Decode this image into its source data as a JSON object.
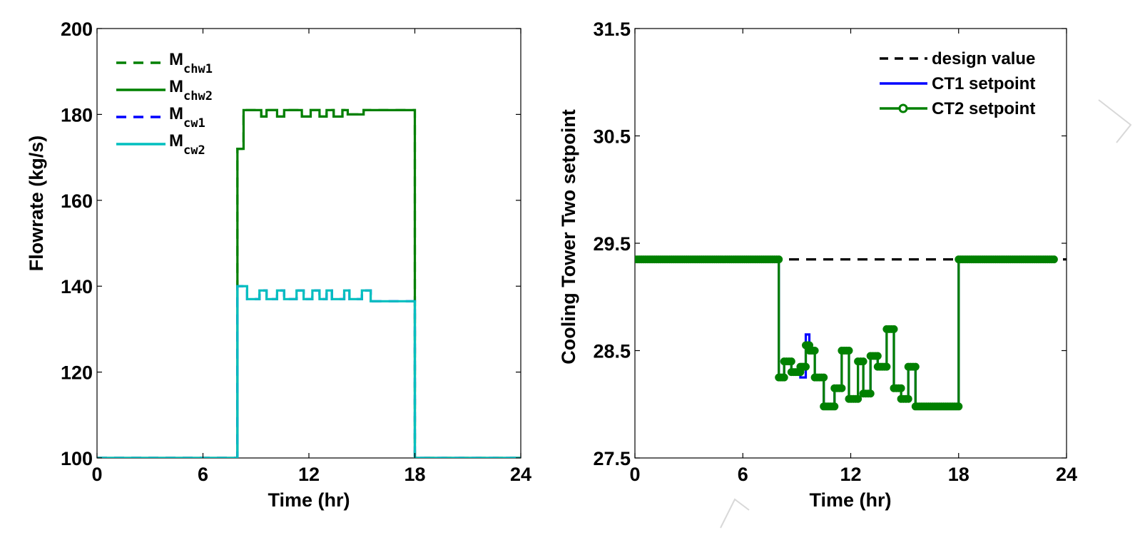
{
  "chart_data": [
    {
      "type": "line",
      "title": "",
      "xlabel": "Time (hr)",
      "ylabel": "Flowrate (kg/s)",
      "xlim": [
        0,
        24
      ],
      "ylim": [
        100,
        200
      ],
      "xticks": [
        "0",
        "6",
        "12",
        "18",
        "24"
      ],
      "yticks": [
        "100",
        "120",
        "140",
        "160",
        "180",
        "200"
      ],
      "legend_position": "top-left",
      "series": [
        {
          "name": "M",
          "sub": "chw1",
          "color": "#008000",
          "style": "dashed",
          "x": [
            0,
            7.95,
            7.95,
            8.3,
            8.3,
            9.3,
            9.3,
            9.6,
            9.6,
            10.2,
            10.2,
            10.6,
            10.6,
            11.6,
            11.6,
            12.1,
            12.1,
            12.6,
            12.6,
            13.0,
            13.0,
            13.4,
            13.4,
            13.9,
            13.9,
            14.2,
            14.2,
            15.1,
            15.1,
            15.6,
            15.6,
            18.0,
            18.0,
            24
          ],
          "y": [
            100,
            100,
            172,
            172,
            181,
            181,
            179.5,
            179.5,
            181,
            181,
            179.5,
            179.5,
            181,
            181,
            179.5,
            179.5,
            181,
            181,
            179.5,
            179.5,
            181,
            181,
            179.5,
            179.5,
            181,
            181,
            180,
            180,
            181,
            181,
            181,
            181,
            100,
            100
          ]
        },
        {
          "name": "M",
          "sub": "chw2",
          "color": "#008000",
          "style": "solid",
          "x": [
            0,
            7.95,
            7.95,
            8.3,
            8.3,
            9.3,
            9.3,
            9.6,
            9.6,
            10.2,
            10.2,
            10.6,
            10.6,
            11.6,
            11.6,
            12.1,
            12.1,
            12.6,
            12.6,
            13.0,
            13.0,
            13.4,
            13.4,
            13.9,
            13.9,
            14.2,
            14.2,
            15.1,
            15.1,
            15.6,
            15.6,
            18.0,
            18.0,
            24
          ],
          "y": [
            100,
            100,
            172,
            172,
            181,
            181,
            179.5,
            179.5,
            181,
            181,
            179.5,
            179.5,
            181,
            181,
            179.5,
            179.5,
            181,
            181,
            179.5,
            179.5,
            181,
            181,
            179.5,
            179.5,
            181,
            181,
            180,
            180,
            181,
            181,
            181,
            181,
            100,
            100
          ]
        },
        {
          "name": "M",
          "sub": "cw1",
          "color": "#0000ff",
          "style": "dashed",
          "x": [
            0,
            7.95,
            7.95,
            8.5,
            8.5,
            9.2,
            9.2,
            9.6,
            9.6,
            10.2,
            10.2,
            10.6,
            10.6,
            11.3,
            11.3,
            11.7,
            11.7,
            12.2,
            12.2,
            12.6,
            12.6,
            13.0,
            13.0,
            13.3,
            13.3,
            14.0,
            14.0,
            14.3,
            14.3,
            15.0,
            15.0,
            15.5,
            15.5,
            18.0,
            18.0,
            24
          ],
          "y": [
            100,
            100,
            140,
            140,
            137,
            137,
            139,
            139,
            137,
            137,
            139,
            139,
            137,
            137,
            139,
            139,
            137,
            137,
            139,
            139,
            137,
            137,
            139,
            139,
            137,
            137,
            139,
            139,
            137,
            137,
            139,
            139,
            136.5,
            136.5,
            100,
            100
          ]
        },
        {
          "name": "M",
          "sub": "cw2",
          "color": "#00bfbf",
          "style": "solid",
          "x": [
            0,
            7.95,
            7.95,
            8.5,
            8.5,
            9.2,
            9.2,
            9.6,
            9.6,
            10.2,
            10.2,
            10.6,
            10.6,
            11.3,
            11.3,
            11.7,
            11.7,
            12.2,
            12.2,
            12.6,
            12.6,
            13.0,
            13.0,
            13.3,
            13.3,
            14.0,
            14.0,
            14.3,
            14.3,
            15.0,
            15.0,
            15.5,
            15.5,
            18.0,
            18.0,
            24
          ],
          "y": [
            100,
            100,
            140,
            140,
            137,
            137,
            139,
            139,
            137,
            137,
            139,
            139,
            137,
            137,
            139,
            139,
            137,
            137,
            139,
            139,
            137,
            137,
            139,
            139,
            137,
            137,
            139,
            139,
            137,
            137,
            139,
            139,
            136.5,
            136.5,
            100,
            100
          ]
        }
      ]
    },
    {
      "type": "line",
      "title": "",
      "xlabel": "Time (hr)",
      "ylabel": "Cooling Tower Two setpoint",
      "xlim": [
        0,
        24
      ],
      "ylim": [
        27.5,
        31.5
      ],
      "xticks": [
        "0",
        "6",
        "12",
        "18",
        "24"
      ],
      "yticks": [
        "27.5",
        "28.5",
        "29.5",
        "30.5",
        "31.5"
      ],
      "legend_position": "top-right",
      "series": [
        {
          "name": "design value",
          "color": "#000000",
          "style": "dashed",
          "x": [
            0,
            24
          ],
          "y": [
            29.35,
            29.35
          ]
        },
        {
          "name": "CT1 setpoint",
          "color": "#0000ff",
          "style": "solid",
          "x": [
            0,
            8.0,
            8.0,
            8.3,
            8.3,
            8.7,
            8.7,
            9.2,
            9.2,
            9.5,
            9.5,
            9.7,
            9.7,
            10.0,
            10.0,
            10.5,
            10.5,
            11.1,
            11.1,
            11.5,
            11.5,
            11.9,
            11.9,
            12.4,
            12.4,
            12.7,
            12.7,
            13.1,
            13.1,
            13.5,
            13.5,
            14.0,
            14.0,
            14.4,
            14.4,
            14.8,
            14.8,
            15.2,
            15.2,
            15.6,
            15.6,
            18.0,
            18.0,
            23.3
          ],
          "y": [
            29.35,
            29.35,
            28.25,
            28.25,
            28.4,
            28.4,
            28.3,
            28.3,
            28.25,
            28.25,
            28.65,
            28.65,
            28.5,
            28.5,
            28.25,
            28.25,
            27.98,
            27.98,
            28.15,
            28.15,
            28.5,
            28.5,
            28.05,
            28.05,
            28.4,
            28.4,
            28.1,
            28.1,
            28.45,
            28.45,
            28.35,
            28.35,
            28.7,
            28.7,
            28.15,
            28.15,
            28.05,
            28.05,
            28.35,
            28.35,
            27.98,
            27.98,
            29.35,
            29.35
          ]
        },
        {
          "name": "CT2 setpoint",
          "color": "#008000",
          "style": "solid-marker",
          "x": [
            0,
            8.0,
            8.0,
            8.3,
            8.3,
            8.7,
            8.7,
            9.2,
            9.2,
            9.5,
            9.5,
            9.7,
            9.7,
            10.0,
            10.0,
            10.5,
            10.5,
            11.1,
            11.1,
            11.5,
            11.5,
            11.9,
            11.9,
            12.4,
            12.4,
            12.7,
            12.7,
            13.1,
            13.1,
            13.5,
            13.5,
            14.0,
            14.0,
            14.4,
            14.4,
            14.8,
            14.8,
            15.2,
            15.2,
            15.6,
            15.6,
            18.0,
            18.0,
            23.3
          ],
          "y": [
            29.35,
            29.35,
            28.25,
            28.25,
            28.4,
            28.4,
            28.3,
            28.3,
            28.35,
            28.35,
            28.55,
            28.55,
            28.5,
            28.5,
            28.25,
            28.25,
            27.98,
            27.98,
            28.15,
            28.15,
            28.5,
            28.5,
            28.05,
            28.05,
            28.4,
            28.4,
            28.1,
            28.1,
            28.45,
            28.45,
            28.35,
            28.35,
            28.7,
            28.7,
            28.15,
            28.15,
            28.05,
            28.05,
            28.35,
            28.35,
            27.98,
            27.98,
            29.35,
            29.35
          ]
        }
      ]
    }
  ]
}
